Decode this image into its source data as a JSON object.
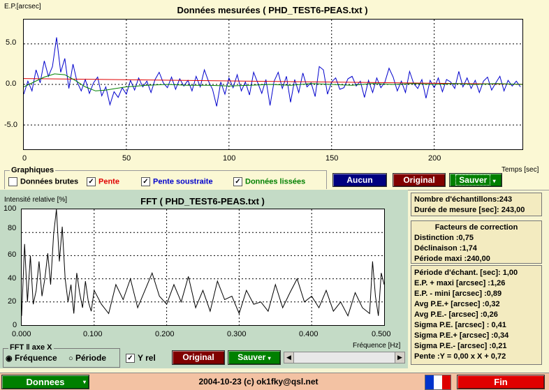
{
  "top_chart": {
    "title": "Données mesurées ( PHD_TEST6-PEAS.txt )",
    "ylabel": "E.P.[arcsec]",
    "xlabel": "Temps [sec]",
    "yticks": [
      "5.0",
      "0.0",
      "-5.0"
    ],
    "xticks": [
      "0",
      "50",
      "100",
      "150",
      "200"
    ]
  },
  "graphiques": {
    "title": "Graphiques",
    "items": [
      {
        "label": "Données brutes",
        "checked": false,
        "color": "#000000"
      },
      {
        "label": "Pente",
        "checked": true,
        "color": "#e00000"
      },
      {
        "label": "Pente soustraite",
        "checked": true,
        "color": "#0000cc"
      },
      {
        "label": "Données lissées",
        "checked": true,
        "color": "#008000"
      }
    ],
    "buttons": {
      "aucun": "Aucun",
      "original": "Original",
      "sauver": "Sauver"
    }
  },
  "fft_chart": {
    "title": "FFT ( PHD_TEST6-PEAS.txt )",
    "ylabel": "Intensité relative [%]",
    "xlabel": "Fréquence [Hz]",
    "yticks": [
      "100",
      "80",
      "60",
      "40",
      "20",
      "0"
    ],
    "xticks": [
      "0.000",
      "0.100",
      "0.200",
      "0.300",
      "0.400",
      "0.500"
    ]
  },
  "fft_controls": {
    "group_title": "FFT ‖ axe X",
    "radio_frequence": "Fréquence",
    "radio_periode": "Période",
    "yrel_label": "Y rel",
    "original": "Original",
    "sauver": "Sauver"
  },
  "info1": {
    "line1": "Nombre d'échantillons:243",
    "line2": "Durée de mesure [sec]: 243,00"
  },
  "info2": {
    "title": "Facteurs de correction",
    "line1": "Distinction :0,75",
    "line2": "Déclinaison :1,74",
    "line3": "Période maxi :240,00"
  },
  "info3": {
    "lines": [
      "Période d'échant. [sec]: 1,00",
      "E.P. + maxi [arcsec] :1,26",
      "E.P. - mini [arcsec] :0,89",
      "Avg P.E.+ [arcsec] :0,32",
      "Avg P.E.- [arcsec] :0,26",
      "Sigma P.E. [arcsec] : 0,41",
      "Sigma P.E.+ [arcsec] :0,34",
      "Sigma P.E.- [arcsec] :0,21",
      "Pente :Y = 0,00 x X + 0,72"
    ]
  },
  "status_bar": {
    "donnees_button": "Donnees",
    "center_text": "2004-10-23 (c) ok1fky@qsl.net",
    "fin_button": "Fin"
  },
  "colors": {
    "raw_line": "#0000cc",
    "trend_line": "#e00000",
    "smooth_line": "#008000",
    "fft_line": "#000000",
    "btn_navy": "#000080",
    "btn_maroon": "#800000",
    "btn_green": "#008000",
    "btn_red": "#e00000"
  },
  "chart_data": [
    {
      "type": "line",
      "title": "Données mesurées ( PHD_TEST6-PEAS.txt )",
      "xlabel": "Temps [sec]",
      "ylabel": "E.P.[arcsec]",
      "xlim": [
        0,
        243
      ],
      "ylim": [
        -8,
        8
      ],
      "grid": true,
      "series": [
        {
          "name": "Pente soustraite",
          "color": "#0000cc",
          "x": [
            0,
            2,
            4,
            6,
            8,
            10,
            12,
            14,
            16,
            18,
            20,
            22,
            24,
            26,
            28,
            30,
            32,
            34,
            36,
            38,
            40,
            42,
            44,
            46,
            48,
            50,
            52,
            54,
            56,
            58,
            60,
            62,
            64,
            66,
            68,
            70,
            72,
            74,
            76,
            78,
            80,
            82,
            84,
            86,
            88,
            90,
            92,
            94,
            96,
            98,
            100,
            102,
            104,
            106,
            108,
            110,
            112,
            114,
            116,
            118,
            120,
            122,
            124,
            126,
            128,
            130,
            132,
            134,
            136,
            138,
            140,
            142,
            144,
            146,
            148,
            150,
            152,
            154,
            156,
            158,
            160,
            162,
            164,
            166,
            168,
            170,
            172,
            174,
            176,
            178,
            180,
            182,
            184,
            186,
            188,
            190,
            192,
            194,
            196,
            198,
            200,
            202,
            204,
            206,
            208,
            210,
            212,
            214,
            216,
            218,
            220,
            222,
            224,
            226,
            228,
            230,
            232,
            234,
            236,
            238,
            240,
            242
          ],
          "y": [
            -1.2,
            0.4,
            -0.8,
            1.8,
            0.2,
            2.9,
            1.0,
            2.2,
            5.8,
            1.5,
            3.2,
            -0.5,
            2.5,
            0.3,
            -0.8,
            0.6,
            -1.1,
            0.2,
            0.9,
            -1.4,
            -0.3,
            -2.5,
            -0.9,
            -1.6,
            -0.4,
            -1.2,
            0.5,
            -0.7,
            0.8,
            -0.3,
            0.4,
            -1.0,
            0.6,
            1.5,
            0.2,
            -0.4,
            0.9,
            -0.6,
            0.7,
            -0.2,
            0.5,
            -0.8,
            1.0,
            -0.3,
            1.8,
            0.4,
            -0.6,
            -2.7,
            0.3,
            -1.2,
            0.8,
            -0.4,
            1.2,
            -0.8,
            0.3,
            -1.3,
            1.5,
            0.2,
            -1.1,
            0.6,
            -2.6,
            0.4,
            1.5,
            -0.5,
            1.0,
            -2.2,
            0.6,
            -1.0,
            1.4,
            -0.3,
            0.2,
            -1.5,
            2.2,
            1.8,
            -1.2,
            0.3,
            0.8,
            -0.6,
            -0.4,
            0.7,
            1.0,
            -0.2,
            0.4,
            -1.6,
            0.5,
            -1.0,
            0.8,
            -0.4,
            0.3,
            2.0,
            0.9,
            -0.8,
            0.4,
            -1.0,
            1.6,
            0.1,
            -0.5,
            0.6,
            -1.7,
            0.5,
            -0.4,
            0.8,
            -0.9,
            0.6,
            0.3,
            -0.5,
            1.6,
            -0.3,
            0.8,
            -0.5,
            0.5,
            -1.0,
            0.4,
            0.9,
            -0.7,
            0.2,
            1.0,
            -0.8,
            0.5,
            -0.2,
            0.4,
            -0.3
          ]
        },
        {
          "name": "Pente",
          "color": "#e00000",
          "x": [
            0,
            243
          ],
          "y": [
            0.72,
            0.02
          ]
        },
        {
          "name": "Données lissées",
          "color": "#008000",
          "x": [
            0,
            5,
            10,
            15,
            20,
            25,
            30,
            35,
            40,
            45,
            50,
            60,
            70,
            80,
            90,
            100,
            110,
            120,
            130,
            140,
            150,
            160,
            170,
            180,
            190,
            200,
            210,
            220,
            230,
            243
          ],
          "y": [
            -0.3,
            0.3,
            0.9,
            1.3,
            1.2,
            0.5,
            -0.3,
            -0.8,
            -0.7,
            -0.5,
            -0.3,
            -0.1,
            0.0,
            -0.1,
            -0.1,
            -0.2,
            -0.1,
            0.0,
            -0.1,
            0.1,
            0.0,
            -0.1,
            0.1,
            0.0,
            0.1,
            0.0,
            0.1,
            0.0,
            0.1,
            0.0
          ]
        }
      ]
    },
    {
      "type": "line",
      "title": "FFT ( PHD_TEST6-PEAS.txt )",
      "xlabel": "Fréquence [Hz]",
      "ylabel": "Intensité relative [%]",
      "xlim": [
        0,
        0.5
      ],
      "ylim": [
        0,
        100
      ],
      "grid": true,
      "series": [
        {
          "name": "",
          "color": "#000000",
          "x": [
            0.0,
            0.004,
            0.008,
            0.012,
            0.016,
            0.02,
            0.024,
            0.028,
            0.032,
            0.036,
            0.04,
            0.044,
            0.048,
            0.052,
            0.056,
            0.06,
            0.064,
            0.068,
            0.072,
            0.076,
            0.08,
            0.084,
            0.088,
            0.092,
            0.096,
            0.1,
            0.11,
            0.12,
            0.13,
            0.14,
            0.15,
            0.16,
            0.17,
            0.18,
            0.19,
            0.2,
            0.21,
            0.22,
            0.23,
            0.24,
            0.25,
            0.26,
            0.27,
            0.28,
            0.29,
            0.3,
            0.31,
            0.32,
            0.33,
            0.34,
            0.35,
            0.36,
            0.37,
            0.38,
            0.39,
            0.4,
            0.41,
            0.42,
            0.43,
            0.44,
            0.45,
            0.46,
            0.47,
            0.48,
            0.484,
            0.488,
            0.492,
            0.496,
            0.5
          ],
          "y": [
            8,
            70,
            20,
            60,
            18,
            30,
            55,
            25,
            40,
            62,
            35,
            78,
            100,
            55,
            85,
            40,
            20,
            35,
            10,
            45,
            28,
            15,
            38,
            20,
            12,
            30,
            18,
            10,
            35,
            22,
            40,
            15,
            30,
            45,
            25,
            18,
            35,
            20,
            42,
            15,
            30,
            12,
            38,
            22,
            25,
            10,
            30,
            18,
            20,
            12,
            35,
            15,
            28,
            40,
            20,
            25,
            15,
            30,
            12,
            20,
            8,
            28,
            15,
            10,
            55,
            25,
            8,
            45,
            35
          ]
        }
      ]
    }
  ]
}
